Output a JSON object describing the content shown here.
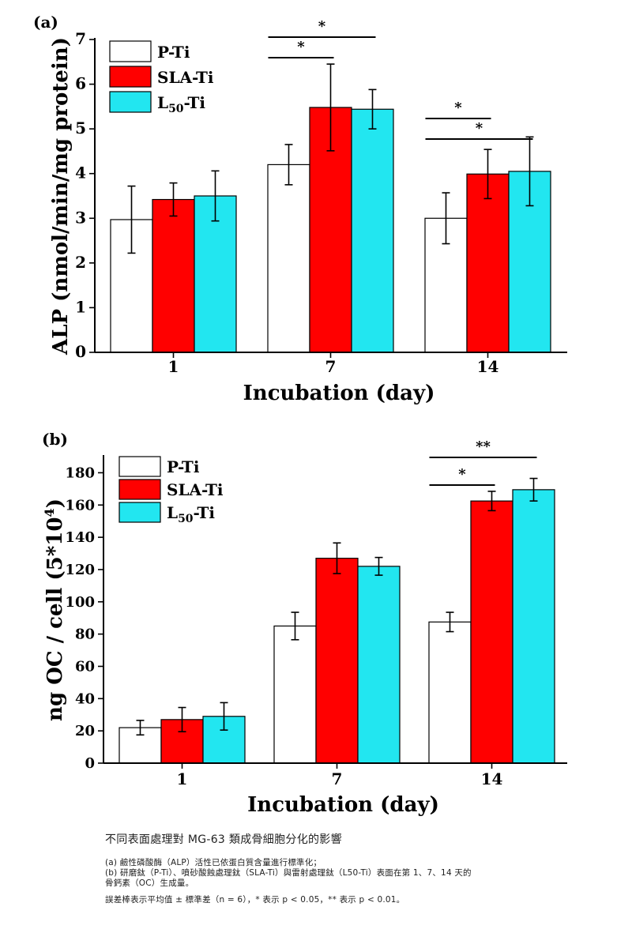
{
  "chart_data": [
    {
      "type": "bar",
      "panel_label": "(a)",
      "categories": [
        "1",
        "7",
        "14"
      ],
      "series": [
        {
          "name": "P-Ti",
          "name_main": "P-Ti",
          "name_sub": "",
          "name_tail": "",
          "color": "#ffffff",
          "values": [
            2.97,
            4.2,
            3.0
          ],
          "errors": [
            0.75,
            0.45,
            0.57
          ]
        },
        {
          "name": "SLA-Ti",
          "name_main": "SLA-Ti",
          "name_sub": "",
          "name_tail": "",
          "color": "#ff0000",
          "values": [
            3.42,
            5.48,
            3.99
          ],
          "errors": [
            0.37,
            0.97,
            0.55
          ]
        },
        {
          "name": "L50-Ti",
          "name_main": "L",
          "name_sub": "50",
          "name_tail": "-Ti",
          "color": "#22e6f0",
          "values": [
            3.5,
            5.44,
            4.05
          ],
          "errors": [
            0.56,
            0.44,
            0.77
          ]
        }
      ],
      "xlabel": "Incubation (day)",
      "ylabel": "ALP (nmol/min/mg protein)",
      "ylim": [
        0,
        7
      ],
      "yticks": [
        0,
        1,
        2,
        3,
        4,
        5,
        6,
        7
      ],
      "legend_position": "top-left",
      "significance": [
        {
          "group": 1,
          "from": 0,
          "to": 1,
          "level": 2,
          "label": "*"
        },
        {
          "group": 1,
          "from": 0,
          "to": 2,
          "level": 1,
          "label": "*"
        },
        {
          "group": 2,
          "from": 0,
          "to": 1,
          "level": 1,
          "label": "*"
        },
        {
          "group": 2,
          "from": 0,
          "to": 2,
          "level": 2,
          "label": "*"
        }
      ]
    },
    {
      "type": "bar",
      "panel_label": "(b)",
      "categories": [
        "1",
        "7",
        "14"
      ],
      "series": [
        {
          "name": "P-Ti",
          "name_main": "P-Ti",
          "name_sub": "",
          "name_tail": "",
          "color": "#ffffff",
          "values": [
            22,
            85,
            87.5
          ],
          "errors": [
            4.5,
            8.5,
            6
          ]
        },
        {
          "name": "SLA-Ti",
          "name_main": "SLA-Ti",
          "name_sub": "",
          "name_tail": "",
          "color": "#ff0000",
          "values": [
            27,
            127,
            162.5
          ],
          "errors": [
            7.5,
            9.5,
            6
          ]
        },
        {
          "name": "L50-Ti",
          "name_main": "L",
          "name_sub": "50",
          "name_tail": "-Ti",
          "color": "#22e6f0",
          "values": [
            29,
            122,
            169.5
          ],
          "errors": [
            8.5,
            5.5,
            7
          ]
        }
      ],
      "xlabel": "Incubation (day)",
      "ylabel_main": "ng OC / cell (5*10",
      "ylabel_sup": "4",
      "ylabel_tail": ")",
      "ylim": [
        0,
        190
      ],
      "yticks": [
        0,
        20,
        40,
        60,
        80,
        100,
        120,
        140,
        160,
        180
      ],
      "legend_position": "top-left",
      "significance": [
        {
          "group": 2,
          "from": 0,
          "to": 1,
          "level": 1,
          "label": "*"
        },
        {
          "group": 2,
          "from": 0,
          "to": 2,
          "level": 2,
          "label": "**"
        }
      ]
    }
  ],
  "caption": {
    "title": "不同表面處理對 MG-63 類成骨細胞分化的影響",
    "line_a": "(a) 鹼性磷酸酶（ALP）活性已依蛋白質含量進行標準化；",
    "line_b1": "(b) 研磨鈦（P-Ti）、噴砂酸蝕處理鈦（SLA-Ti）與雷射處理鈦（L50-Ti）表面在第 1、7、14 天的",
    "line_b2": "骨鈣素（OC）生成量。",
    "note": "誤差棒表示平均值 ± 標準差（n = 6），* 表示 p < 0.05，** 表示 p < 0.01。"
  }
}
